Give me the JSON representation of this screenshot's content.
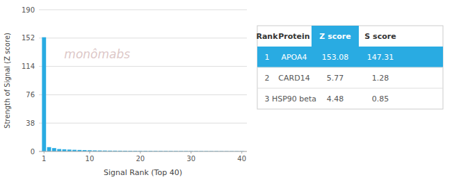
{
  "chart_data": {
    "type": "bar",
    "xlabel": "Signal Rank (Top 40)",
    "ylabel": "Strength of Signal (Z score)",
    "x": [
      1,
      2,
      3,
      4,
      5,
      6,
      7,
      8,
      9,
      10,
      11,
      12,
      13,
      14,
      15,
      16,
      17,
      18,
      19,
      20,
      21,
      22,
      23,
      24,
      25,
      26,
      27,
      28,
      29,
      30,
      31,
      32,
      33,
      34,
      35,
      36,
      37,
      38,
      39,
      40
    ],
    "values": [
      153.08,
      5.77,
      4.48,
      3.2,
      2.8,
      2.5,
      2.2,
      2.0,
      1.8,
      1.6,
      1.4,
      1.3,
      1.2,
      1.1,
      1.05,
      1.0,
      0.95,
      0.9,
      0.85,
      0.8,
      0.78,
      0.75,
      0.72,
      0.7,
      0.68,
      0.65,
      0.63,
      0.6,
      0.58,
      0.55,
      0.53,
      0.51,
      0.49,
      0.47,
      0.45,
      0.43,
      0.41,
      0.39,
      0.37,
      0.35
    ],
    "color": "#29ABE2",
    "xlim": [
      0,
      41
    ],
    "xticks": [
      1,
      10,
      20,
      30,
      40
    ],
    "ylim": [
      0,
      190
    ],
    "yticks": [
      0,
      38,
      76,
      114,
      152,
      190
    ],
    "grid": true,
    "annotations": [
      {
        "text": "monômabs"
      }
    ],
    "table": {
      "headers": [
        "Rank",
        "Protein",
        "Z score",
        "S score"
      ],
      "rows": [
        [
          "1",
          "APOA4",
          "153.08",
          "147.31"
        ],
        [
          "2",
          "CARD14",
          "5.77",
          "1.28"
        ],
        [
          "3",
          "HSP90 beta",
          "4.48",
          "0.85"
        ]
      ]
    }
  }
}
